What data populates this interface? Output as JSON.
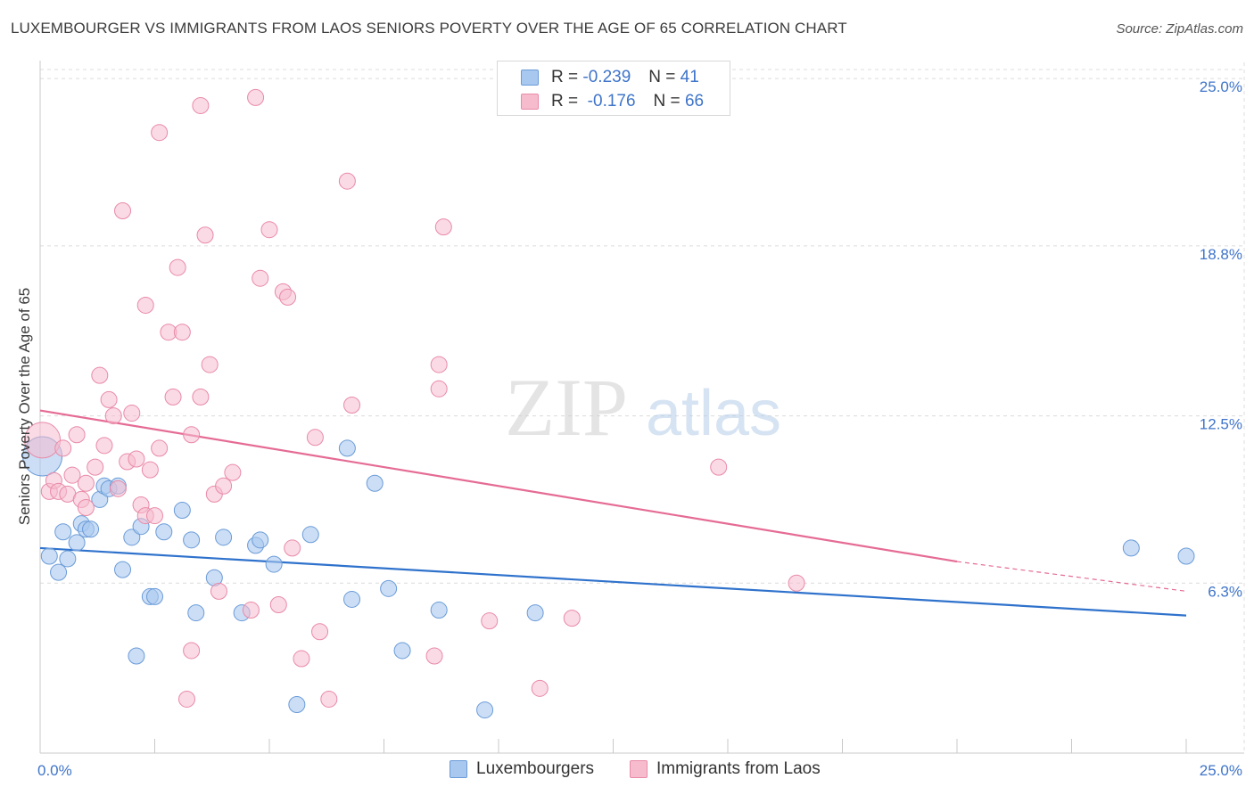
{
  "title": "LUXEMBOURGER VS IMMIGRANTS FROM LAOS SENIORS POVERTY OVER THE AGE OF 65 CORRELATION CHART",
  "source": "Source: ZipAtlas.com",
  "watermark": {
    "zip": "ZIP",
    "atlas": "atlas"
  },
  "legend": {
    "rows": [
      {
        "r_label": "R = ",
        "r_value": "-0.239",
        "n_label": "N = ",
        "n_value": "41"
      },
      {
        "r_label": "R = ",
        "r_value": "-0.176",
        "n_label": "N = ",
        "n_value": "66"
      }
    ]
  },
  "bottom_legend": {
    "series1": "Luxembourgers",
    "series2": "Immigrants from Laos"
  },
  "colors": {
    "blue_fill": "#a9c8ef",
    "blue_stroke": "#6a9bd8",
    "blue_line": "#2f72cc",
    "pink_fill": "#f6bccd",
    "pink_stroke": "#e98aa8",
    "pink_line": "#e56b95",
    "grid": "#dcdcdc",
    "axis_label": "#3f74c9"
  },
  "chart_data": {
    "type": "scatter",
    "title": "LUXEMBOURGER VS IMMIGRANTS FROM LAOS SENIORS POVERTY OVER THE AGE OF 65 CORRELATION CHART",
    "xlabel": "",
    "ylabel": "Seniors Poverty Over the Age of 65",
    "xlim": [
      0,
      25
    ],
    "ylim": [
      0,
      25.6
    ],
    "x_tick_labels": [
      "0.0%",
      "25.0%"
    ],
    "y_ticks": [
      6.3,
      12.5,
      18.8,
      25.0
    ],
    "y_tick_labels": [
      "6.3%",
      "12.5%",
      "18.8%",
      "25.0%"
    ],
    "series": [
      {
        "name": "Luxembourgers",
        "r": -0.239,
        "n": 41,
        "trend": {
          "x0": 0,
          "y0": 7.6,
          "x1": 25,
          "y1": 5.1
        },
        "points": [
          [
            0.2,
            7.3
          ],
          [
            0.4,
            6.7
          ],
          [
            0.5,
            8.2
          ],
          [
            0.6,
            7.2
          ],
          [
            0.8,
            7.8
          ],
          [
            0.9,
            8.5
          ],
          [
            1.0,
            8.3
          ],
          [
            1.1,
            8.3
          ],
          [
            1.3,
            9.4
          ],
          [
            1.4,
            9.9
          ],
          [
            1.5,
            9.8
          ],
          [
            1.7,
            9.9
          ],
          [
            1.8,
            6.8
          ],
          [
            2.0,
            8.0
          ],
          [
            2.1,
            3.6
          ],
          [
            2.2,
            8.4
          ],
          [
            2.4,
            5.8
          ],
          [
            2.5,
            5.8
          ],
          [
            2.7,
            8.2
          ],
          [
            3.1,
            9.0
          ],
          [
            3.3,
            7.9
          ],
          [
            3.4,
            5.2
          ],
          [
            3.8,
            6.5
          ],
          [
            4.0,
            8.0
          ],
          [
            4.4,
            5.2
          ],
          [
            4.7,
            7.7
          ],
          [
            4.8,
            7.9
          ],
          [
            5.1,
            7.0
          ],
          [
            5.6,
            1.8
          ],
          [
            5.9,
            8.1
          ],
          [
            6.8,
            5.7
          ],
          [
            6.7,
            11.3
          ],
          [
            7.3,
            10.0
          ],
          [
            7.6,
            6.1
          ],
          [
            7.9,
            3.8
          ],
          [
            8.7,
            5.3
          ],
          [
            9.7,
            1.6
          ],
          [
            10.8,
            5.2
          ],
          [
            0.05,
            11.0
          ],
          [
            23.8,
            7.6
          ],
          [
            25.0,
            7.3
          ]
        ]
      },
      {
        "name": "Immigrants from Laos",
        "r": -0.176,
        "n": 66,
        "trend": {
          "x0": 0,
          "y0": 12.7,
          "x1": 20,
          "y1": 7.1
        },
        "trend_dashed": {
          "x0": 20,
          "y0": 7.1,
          "x1": 25,
          "y1": 6.0
        },
        "points": [
          [
            0.05,
            11.6
          ],
          [
            0.2,
            9.7
          ],
          [
            0.3,
            10.1
          ],
          [
            0.4,
            9.7
          ],
          [
            0.5,
            11.3
          ],
          [
            0.6,
            9.6
          ],
          [
            0.7,
            10.3
          ],
          [
            0.8,
            11.8
          ],
          [
            0.9,
            9.4
          ],
          [
            1.0,
            10.0
          ],
          [
            1.0,
            9.1
          ],
          [
            1.2,
            10.6
          ],
          [
            1.3,
            14.0
          ],
          [
            1.4,
            11.4
          ],
          [
            1.5,
            13.1
          ],
          [
            1.6,
            12.5
          ],
          [
            1.7,
            9.8
          ],
          [
            1.8,
            20.1
          ],
          [
            1.9,
            10.8
          ],
          [
            2.0,
            12.6
          ],
          [
            2.1,
            10.9
          ],
          [
            2.2,
            9.2
          ],
          [
            2.3,
            8.8
          ],
          [
            2.3,
            16.6
          ],
          [
            2.4,
            10.5
          ],
          [
            2.5,
            8.8
          ],
          [
            2.6,
            23.0
          ],
          [
            2.6,
            11.3
          ],
          [
            2.8,
            15.6
          ],
          [
            2.9,
            13.2
          ],
          [
            3.0,
            18.0
          ],
          [
            3.1,
            15.6
          ],
          [
            3.2,
            2.0
          ],
          [
            3.3,
            11.8
          ],
          [
            3.3,
            3.8
          ],
          [
            3.5,
            24.0
          ],
          [
            3.5,
            13.2
          ],
          [
            3.6,
            19.2
          ],
          [
            3.7,
            14.4
          ],
          [
            3.8,
            9.6
          ],
          [
            3.9,
            6.0
          ],
          [
            4.0,
            9.9
          ],
          [
            4.2,
            10.4
          ],
          [
            4.6,
            5.3
          ],
          [
            4.7,
            24.3
          ],
          [
            4.8,
            17.6
          ],
          [
            5.0,
            19.4
          ],
          [
            5.2,
            5.5
          ],
          [
            5.3,
            17.1
          ],
          [
            5.4,
            16.9
          ],
          [
            5.5,
            7.6
          ],
          [
            5.7,
            3.5
          ],
          [
            6.0,
            11.7
          ],
          [
            6.1,
            4.5
          ],
          [
            6.3,
            2.0
          ],
          [
            6.7,
            21.2
          ],
          [
            6.8,
            12.9
          ],
          [
            8.6,
            3.6
          ],
          [
            8.7,
            14.4
          ],
          [
            8.7,
            13.5
          ],
          [
            8.8,
            19.5
          ],
          [
            9.8,
            4.9
          ],
          [
            10.9,
            2.4
          ],
          [
            11.6,
            5.0
          ],
          [
            14.8,
            10.6
          ],
          [
            16.5,
            6.3
          ]
        ]
      }
    ]
  }
}
